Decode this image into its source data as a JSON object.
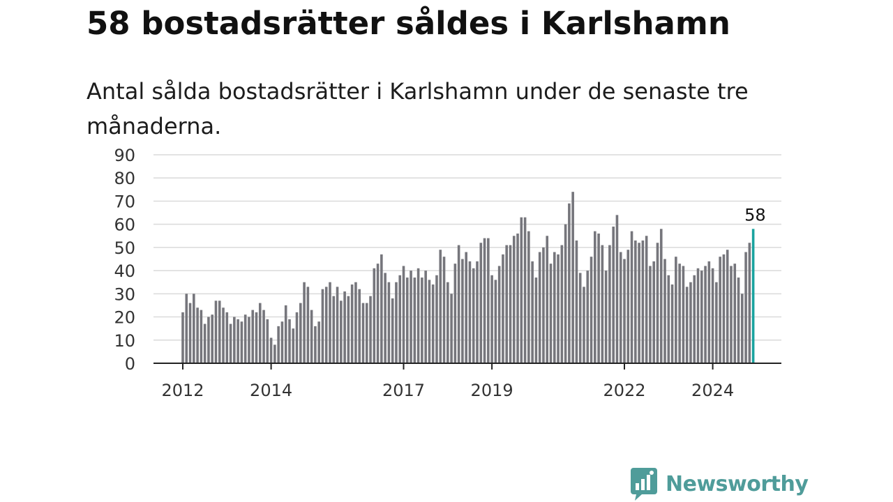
{
  "title": "58 bostadsrätter såldes i Karlshamn",
  "subtitle": "Antal sålda bostadsrätter i Karlshamn under de senaste tre månaderna.",
  "brand": {
    "name": "Newsworthy",
    "color": "#4f9c9a",
    "icon": "newsworthy-chart-bubble-icon"
  },
  "chart_data": {
    "type": "bar",
    "x_start": "2012-01",
    "x_step": "month",
    "x_tick_labels": [
      "2012",
      "2014",
      "2017",
      "2019",
      "2022",
      "2024"
    ],
    "y_ticks": [
      0,
      10,
      20,
      30,
      40,
      50,
      60,
      70,
      80,
      90
    ],
    "ylim": [
      0,
      90
    ],
    "grid": true,
    "bar_color": "#76767c",
    "highlight_color": "#1aa39f",
    "highlight_label": "58",
    "values": [
      22,
      30,
      26,
      30,
      24,
      23,
      17,
      20,
      21,
      27,
      27,
      24,
      22,
      17,
      20,
      19,
      18,
      21,
      20,
      23,
      22,
      26,
      23,
      19,
      11,
      8,
      16,
      18,
      25,
      19,
      15,
      22,
      26,
      35,
      33,
      23,
      16,
      18,
      32,
      33,
      35,
      29,
      33,
      27,
      31,
      29,
      34,
      35,
      32,
      26,
      26,
      29,
      41,
      43,
      47,
      39,
      35,
      28,
      35,
      38,
      42,
      37,
      40,
      37,
      41,
      37,
      40,
      36,
      34,
      38,
      49,
      46,
      35,
      30,
      43,
      51,
      45,
      48,
      44,
      41,
      44,
      52,
      54,
      54,
      38,
      36,
      42,
      47,
      51,
      51,
      55,
      56,
      63,
      63,
      57,
      44,
      37,
      48,
      50,
      55,
      43,
      48,
      47,
      51,
      60,
      69,
      74,
      53,
      39,
      33,
      40,
      46,
      57,
      56,
      51,
      40,
      51,
      59,
      64,
      48,
      45,
      49,
      57,
      53,
      52,
      53,
      55,
      42,
      44,
      52,
      58,
      45,
      38,
      34,
      46,
      43,
      42,
      33,
      35,
      38,
      41,
      40,
      42,
      44,
      41,
      35,
      46,
      47,
      49,
      42,
      43,
      37,
      30,
      48,
      52,
      58
    ]
  }
}
